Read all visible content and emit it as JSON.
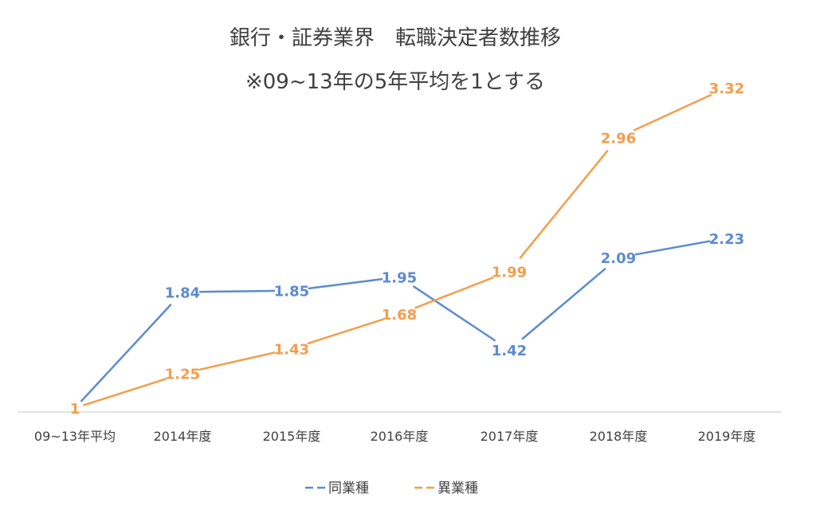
{
  "chart_data": {
    "type": "line",
    "title": "銀行・証券業界　転職決定者数推移",
    "subtitle": "※09~13年の5年平均を1とする",
    "categories": [
      "09~13年平均",
      "2014年度",
      "2015年度",
      "2016年度",
      "2017年度",
      "2018年度",
      "2019年度"
    ],
    "series": [
      {
        "name": "同業種",
        "color": "#5b8bd0",
        "values": [
          1,
          1.84,
          1.85,
          1.95,
          1.42,
          2.09,
          2.23
        ],
        "labels": [
          "",
          "1.84",
          "1.85",
          "1.95",
          "1.42",
          "2.09",
          "2.23"
        ]
      },
      {
        "name": "異業種",
        "color": "#f59d4c",
        "values": [
          1,
          1.25,
          1.43,
          1.68,
          1.99,
          2.96,
          3.32
        ],
        "labels": [
          "1",
          "1.25",
          "1.43",
          "1.68",
          "1.99",
          "2.96",
          "3.32"
        ]
      }
    ],
    "ylim": [
      1,
      3.32
    ],
    "grid": false,
    "legend_position": "bottom",
    "xlabel": "",
    "ylabel": ""
  }
}
